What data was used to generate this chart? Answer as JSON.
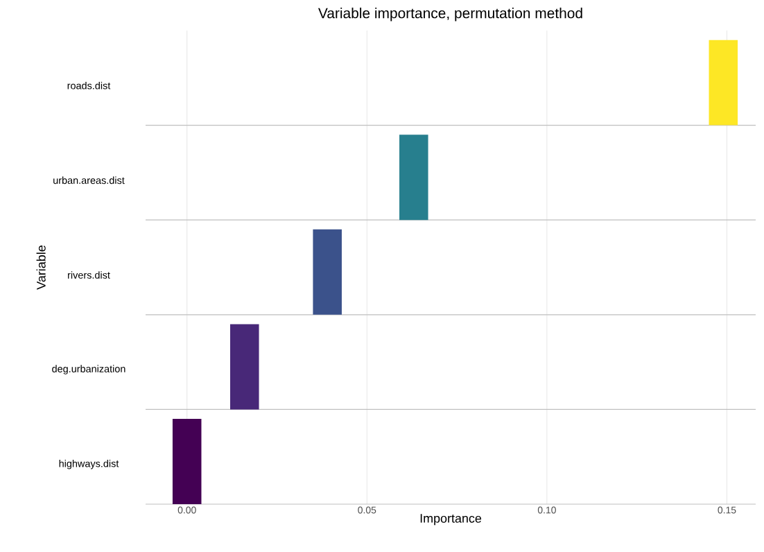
{
  "chart_data": {
    "type": "bar",
    "orientation": "horizontal",
    "title": "Variable importance, permutation method",
    "xlabel": "Importance",
    "ylabel": "Variable",
    "categories": [
      "roads.dist",
      "urban.areas.dist",
      "rivers.dist",
      "deg.urbanization",
      "highways.dist"
    ],
    "base": [
      0.145,
      0.059,
      0.035,
      0.012,
      -0.004
    ],
    "values": [
      0.008,
      0.008,
      0.008,
      0.008,
      0.008
    ],
    "colors": [
      "#fde725",
      "#277f8e",
      "#3b528b",
      "#482878",
      "#440154"
    ],
    "grid": true,
    "xlim": [
      -0.0115,
      0.158
    ],
    "xticks": [
      {
        "value": 0,
        "label": "0.00"
      },
      {
        "value": 0.05,
        "label": "0.05"
      },
      {
        "value": 0.1,
        "label": "0.10"
      },
      {
        "value": 0.15,
        "label": "0.15"
      }
    ]
  }
}
